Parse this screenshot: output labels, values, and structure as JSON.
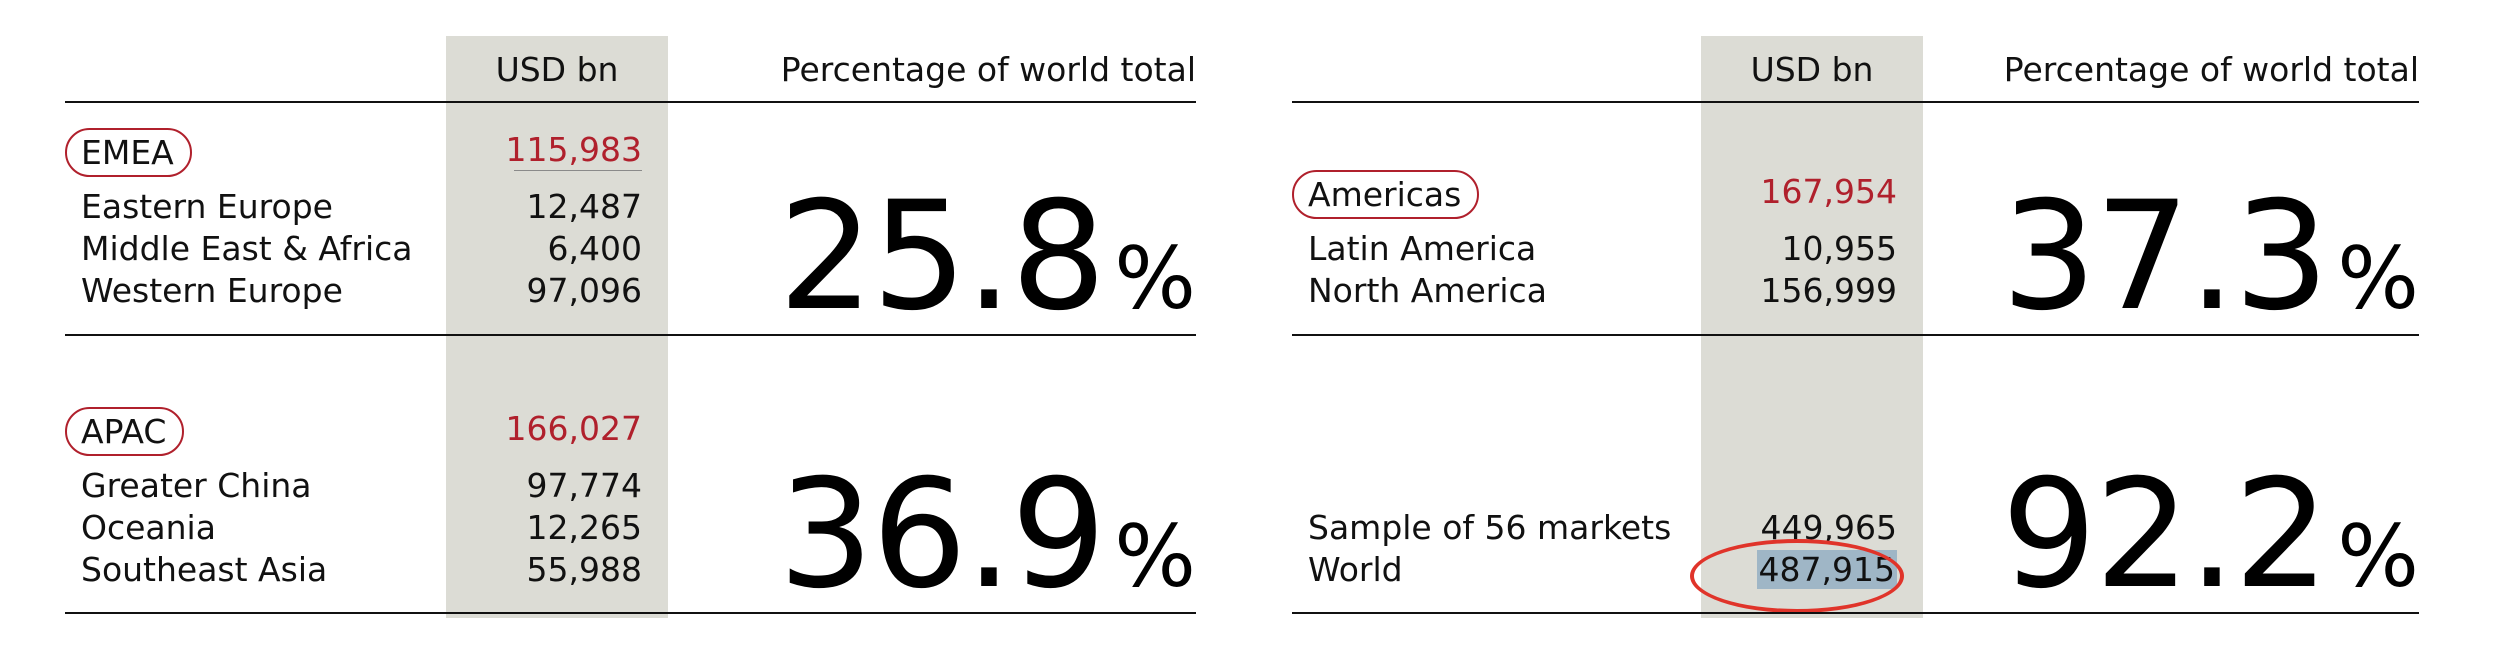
{
  "left": {
    "header_usd": "USD bn",
    "header_pct": "Percentage of world total",
    "emea": {
      "name": "EMEA",
      "total": "115,983",
      "rows": [
        {
          "label": "Eastern Europe",
          "value": "12,487"
        },
        {
          "label": "Middle East & Africa",
          "value": "6,400"
        },
        {
          "label": "Western Europe",
          "value": "97,096"
        }
      ],
      "pct_value": "25.8",
      "pct_sign": "%"
    },
    "apac": {
      "name": "APAC",
      "total": "166,027",
      "rows": [
        {
          "label": "Greater China",
          "value": "97,774"
        },
        {
          "label": "Oceania",
          "value": "12,265"
        },
        {
          "label": "Southeast Asia",
          "value": "55,988"
        }
      ],
      "pct_value": "36.9",
      "pct_sign": "%"
    }
  },
  "right": {
    "header_usd": "USD bn",
    "header_pct": "Percentage of world total",
    "americas": {
      "name": "Americas",
      "total": "167,954",
      "rows": [
        {
          "label": "Latin America",
          "value": "10,955"
        },
        {
          "label": "North America",
          "value": "156,999"
        }
      ],
      "pct_value": "37.3",
      "pct_sign": "%"
    },
    "world": {
      "rows": [
        {
          "label": "Sample of 56 markets",
          "value": "449,965"
        },
        {
          "label": "World",
          "value": "487,915"
        }
      ],
      "pct_value": "92.2",
      "pct_sign": "%"
    }
  },
  "colors": {
    "accent_red": "#b0202c",
    "shade": "#dcdcd5",
    "highlight": "#9fb6c6",
    "circle": "#e0342a"
  }
}
